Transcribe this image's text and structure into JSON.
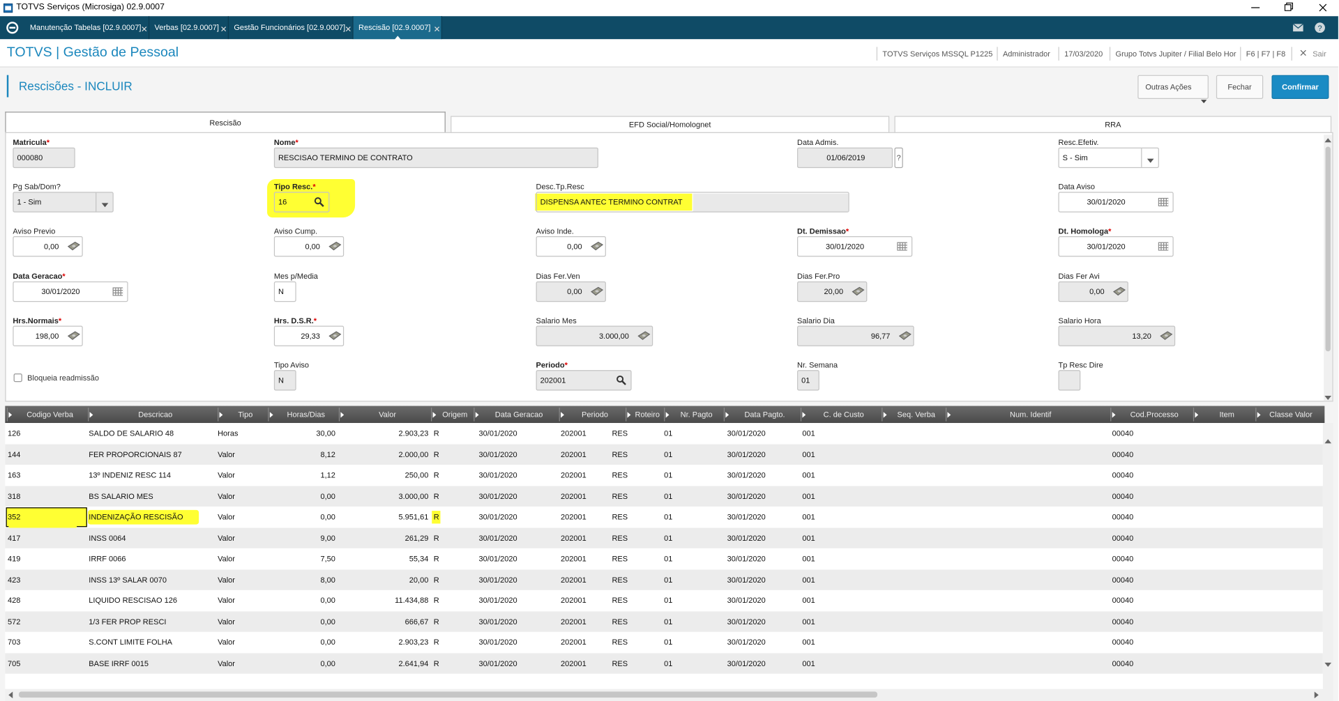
{
  "window": {
    "title": "TOTVS Serviços (Microsiga) 02.9.0007"
  },
  "tabs": [
    "Manutenção Tabelas [02.9.0007]",
    "Verbas [02.9.0007]",
    "Gestão Funcionários [02.9.0007]",
    "Rescisão [02.9.0007]"
  ],
  "header": {
    "app": "TOTVS | Gestão de Pessoal",
    "info": [
      "TOTVS Serviços MSSQL P1225",
      "Administrador",
      "17/03/2020",
      "Grupo Totvs Jupiter / Filial Belo Hor",
      "F6 | F7 | F8"
    ],
    "exit": "Sair"
  },
  "page": {
    "title": "Rescisões - INCLUIR",
    "actions": [
      "Outras Ações",
      "Fechar",
      "Confirmar"
    ]
  },
  "form_tabs": [
    "Rescisão",
    "EFD Social/Homolognet",
    "RRA"
  ],
  "form": {
    "rows": [
      [
        {
          "label": "Matricula",
          "req": "*",
          "value": "000080",
          "kind": "text"
        },
        {
          "label": "Nome",
          "req": "*",
          "value": "RESCISAO TERMINO DE CONTRATO",
          "kind": "text"
        },
        null,
        {
          "label": "Data Admis.",
          "value": "01/06/2019",
          "kind": "date",
          "help": "?"
        },
        {
          "label": "Resc.Efetiv.",
          "value": "S - Sim",
          "kind": "select"
        }
      ],
      [
        {
          "label": "Pg Sab/Dom?",
          "value": "1 - Sim",
          "kind": "select"
        },
        {
          "label": "Tipo Resc.",
          "req": "*",
          "value": "16",
          "kind": "search"
        },
        {
          "label": "Desc.Tp.Resc",
          "value": "DISPENSA ANTEC TERMINO CONTRAT",
          "kind": "text"
        },
        null,
        {
          "label": "Data Aviso",
          "value": "30/01/2020",
          "kind": "calendar"
        }
      ],
      [
        {
          "label": "Aviso Previo",
          "value": "0,00",
          "kind": "money"
        },
        {
          "label": "Aviso Cump.",
          "value": "0,00",
          "kind": "money"
        },
        {
          "label": "Aviso Inde.",
          "value": "0,00",
          "kind": "money"
        },
        {
          "label": "Dt. Demissao",
          "req": "*",
          "value": "30/01/2020",
          "kind": "calendar"
        },
        {
          "label": "Dt. Homologa",
          "req": "*",
          "value": "30/01/2020",
          "kind": "calendar"
        }
      ],
      [
        {
          "label": "Data Geracao",
          "req": "*",
          "value": "30/01/2020",
          "kind": "calendar"
        },
        {
          "label": "Mes p/Media",
          "value": "N",
          "kind": "text"
        },
        {
          "label": "Dias Fer.Ven",
          "value": "0,00",
          "kind": "money"
        },
        {
          "label": "Dias Fer.Pro",
          "value": "20,00",
          "kind": "money"
        },
        {
          "label": "Dias Fer Avi",
          "value": "0,00",
          "kind": "money"
        }
      ],
      [
        {
          "label": "Hrs.Normais",
          "req": "*",
          "value": "198,00",
          "kind": "money"
        },
        {
          "label": "Hrs. D.S.R.",
          "req": "*",
          "value": "29,33",
          "kind": "money"
        },
        {
          "label": "Salario Mes",
          "value": "3.000,00",
          "kind": "money"
        },
        {
          "label": "Salario Dia",
          "value": "96,77",
          "kind": "money"
        },
        {
          "label": "Salario Hora",
          "value": "13,20",
          "kind": "money"
        }
      ],
      [
        {
          "label": "Bloqueia readmissão",
          "kind": "check"
        },
        {
          "label": "Tipo Aviso",
          "value": "N",
          "kind": "text"
        },
        {
          "label": "Periodo",
          "req": "*",
          "value": "202001",
          "kind": "search"
        },
        {
          "label": "Nr. Semana",
          "value": "01",
          "kind": "text"
        },
        {
          "label": "Tp Resc Dire",
          "kind": "text"
        }
      ]
    ]
  },
  "grid": {
    "columns": [
      "Codigo Verba",
      "Descricao",
      "Tipo",
      "Horas/Dias",
      "Valor",
      "Origem",
      "Data Geracao",
      "Periodo",
      "Roteiro",
      "Nr. Pagto",
      "Data Pagto.",
      "C. de Custo",
      "Seq. Verba",
      "Num. Identif",
      "Cod.Processo",
      "Item",
      "Classe Valor"
    ],
    "rows": [
      [
        "126",
        "SALDO DE SALARIO 48",
        "Horas",
        "30,00",
        "2.903,23",
        "R",
        "30/01/2020",
        "202001",
        "RES",
        "01",
        "30/01/2020",
        "001",
        null,
        null,
        "00040"
      ],
      [
        "144",
        "FER PROPORCIONAIS 87",
        "Valor",
        "8,12",
        "2.000,00",
        "R",
        "30/01/2020",
        "202001",
        "RES",
        "01",
        "30/01/2020",
        "001",
        null,
        null,
        "00040"
      ],
      [
        "163",
        "13º INDENIZ RESC 114",
        "Valor",
        "1,12",
        "250,00",
        "R",
        "30/01/2020",
        "202001",
        "RES",
        "01",
        "30/01/2020",
        "001",
        null,
        null,
        "00040"
      ],
      [
        "318",
        "BS SALARIO MES",
        "Valor",
        "0,00",
        "3.000,00",
        "R",
        "30/01/2020",
        "202001",
        "RES",
        "01",
        "30/01/2020",
        "001",
        null,
        null,
        "00040"
      ],
      [
        "352",
        "INDENIZAÇÃO RESCISÃO",
        "Valor",
        "0,00",
        "5.951,61",
        "R",
        "30/01/2020",
        "202001",
        "RES",
        "01",
        "30/01/2020",
        "001",
        null,
        null,
        "00040"
      ],
      [
        "417",
        "INSS 0064",
        "Valor",
        "9,00",
        "261,29",
        "R",
        "30/01/2020",
        "202001",
        "RES",
        "01",
        "30/01/2020",
        "001",
        null,
        null,
        "00040"
      ],
      [
        "419",
        "IRRF 0066",
        "Valor",
        "7,50",
        "55,34",
        "R",
        "30/01/2020",
        "202001",
        "RES",
        "01",
        "30/01/2020",
        "001",
        null,
        null,
        "00040"
      ],
      [
        "423",
        "INSS 13º SALAR 0070",
        "Valor",
        "8,00",
        "20,00",
        "R",
        "30/01/2020",
        "202001",
        "RES",
        "01",
        "30/01/2020",
        "001",
        null,
        null,
        "00040"
      ],
      [
        "428",
        "LIQUIDO RESCISAO 126",
        "Valor",
        "0,00",
        "11.434,88",
        "R",
        "30/01/2020",
        "202001",
        "RES",
        "01",
        "30/01/2020",
        "001",
        null,
        null,
        "00040"
      ],
      [
        "572",
        "1/3 FER PROP RESCI",
        "Valor",
        "0,00",
        "666,67",
        "R",
        "30/01/2020",
        "202001",
        "RES",
        "01",
        "30/01/2020",
        "001",
        null,
        null,
        "00040"
      ],
      [
        "703",
        "S.CONT LIMITE FOLHA",
        "Valor",
        "0,00",
        "2.903,23",
        "R",
        "30/01/2020",
        "202001",
        "RES",
        "01",
        "30/01/2020",
        "001",
        null,
        null,
        "00040"
      ],
      [
        "705",
        "BASE IRRF 0015",
        "Valor",
        "0,00",
        "2.641,94",
        "R",
        "30/01/2020",
        "202001",
        "RES",
        "01",
        "30/01/2020",
        "001",
        null,
        null,
        "00040"
      ]
    ]
  }
}
